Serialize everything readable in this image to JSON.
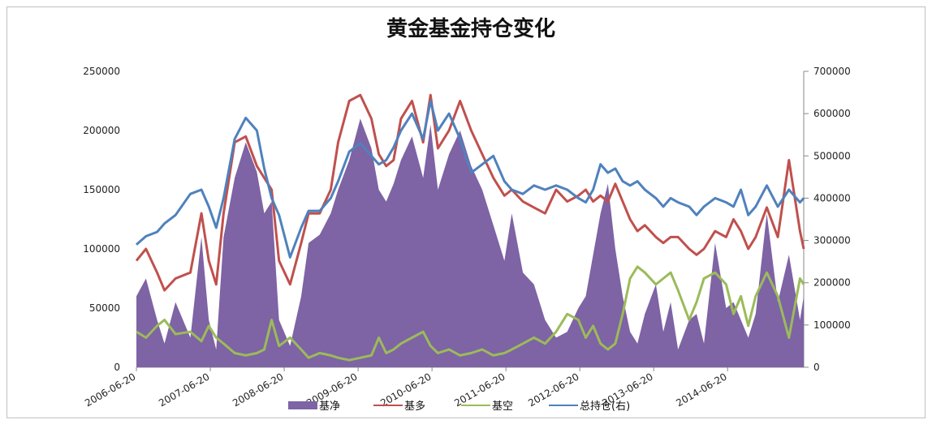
{
  "chart_data": {
    "type": "area",
    "title": "黄金基金持仓变化",
    "x_ticks": [
      "2006-06-20",
      "2007-06-20",
      "2008-06-20",
      "2009-06-20",
      "2010-06-20",
      "2011-06-20",
      "2012-06-20",
      "2013-06-20",
      "2014-06-20"
    ],
    "x_range": [
      2006.47,
      2015.5
    ],
    "y_left": {
      "ticks": [
        0,
        50000,
        100000,
        150000,
        200000,
        250000
      ],
      "tick_labels": [
        "0",
        "50000",
        "100000",
        "150000",
        "200000",
        "250000"
      ],
      "range": [
        0,
        250000
      ]
    },
    "y_right": {
      "ticks": [
        0,
        100000,
        200000,
        300000,
        400000,
        500000,
        600000,
        700000
      ],
      "tick_labels": [
        "0",
        "100000",
        "200000",
        "300000",
        "400000",
        "500000",
        "600000",
        "700000"
      ],
      "range": [
        0,
        700000
      ]
    },
    "legend_position": "bottom",
    "colors": {
      "net": "#7e63a5",
      "long": "#c0504d",
      "short": "#9bbb59",
      "total": "#4f81bd"
    },
    "series": [
      {
        "name": "基净",
        "type": "area",
        "axis": "left",
        "x": [
          2006.47,
          2006.6,
          2006.75,
          2006.85,
          2007.0,
          2007.2,
          2007.35,
          2007.45,
          2007.55,
          2007.65,
          2007.8,
          2007.95,
          2008.1,
          2008.2,
          2008.3,
          2008.4,
          2008.55,
          2008.7,
          2008.8,
          2008.95,
          2009.1,
          2009.2,
          2009.35,
          2009.5,
          2009.65,
          2009.75,
          2009.85,
          2009.95,
          2010.05,
          2010.2,
          2010.35,
          2010.45,
          2010.55,
          2010.7,
          2010.85,
          2011.0,
          2011.15,
          2011.3,
          2011.45,
          2011.55,
          2011.7,
          2011.85,
          2012.0,
          2012.15,
          2012.3,
          2012.45,
          2012.55,
          2012.65,
          2012.75,
          2012.85,
          2012.95,
          2013.05,
          2013.15,
          2013.25,
          2013.35,
          2013.5,
          2013.6,
          2013.7,
          2013.8,
          2013.95,
          2014.05,
          2014.15,
          2014.3,
          2014.45,
          2014.55,
          2014.65,
          2014.75,
          2014.85,
          2015.0,
          2015.15,
          2015.3,
          2015.45,
          2015.5
        ],
        "values": [
          60000,
          75000,
          40000,
          20000,
          55000,
          25000,
          110000,
          40000,
          15000,
          110000,
          160000,
          190000,
          165000,
          130000,
          140000,
          40000,
          18000,
          60000,
          105000,
          112000,
          130000,
          150000,
          175000,
          210000,
          185000,
          150000,
          140000,
          155000,
          175000,
          195000,
          160000,
          205000,
          150000,
          180000,
          200000,
          170000,
          150000,
          120000,
          90000,
          130000,
          80000,
          70000,
          40000,
          25000,
          30000,
          50000,
          60000,
          95000,
          130000,
          155000,
          100000,
          60000,
          30000,
          20000,
          45000,
          70000,
          30000,
          55000,
          15000,
          40000,
          45000,
          20000,
          105000,
          50000,
          55000,
          40000,
          25000,
          45000,
          130000,
          55000,
          95000,
          40000,
          60000
        ]
      },
      {
        "name": "基多",
        "type": "line",
        "axis": "left",
        "x": [
          2006.47,
          2006.6,
          2006.75,
          2006.85,
          2007.0,
          2007.2,
          2007.35,
          2007.45,
          2007.55,
          2007.65,
          2007.8,
          2007.95,
          2008.1,
          2008.2,
          2008.3,
          2008.4,
          2008.55,
          2008.7,
          2008.8,
          2008.95,
          2009.1,
          2009.2,
          2009.35,
          2009.5,
          2009.65,
          2009.75,
          2009.85,
          2009.95,
          2010.05,
          2010.2,
          2010.35,
          2010.45,
          2010.55,
          2010.7,
          2010.85,
          2011.0,
          2011.15,
          2011.3,
          2011.45,
          2011.55,
          2011.7,
          2011.85,
          2012.0,
          2012.15,
          2012.3,
          2012.45,
          2012.55,
          2012.65,
          2012.75,
          2012.85,
          2012.95,
          2013.05,
          2013.15,
          2013.25,
          2013.35,
          2013.5,
          2013.6,
          2013.7,
          2013.8,
          2013.95,
          2014.05,
          2014.15,
          2014.3,
          2014.45,
          2014.55,
          2014.65,
          2014.75,
          2014.85,
          2015.0,
          2015.15,
          2015.3,
          2015.45,
          2015.5
        ],
        "values": [
          90000,
          100000,
          80000,
          65000,
          75000,
          80000,
          130000,
          90000,
          70000,
          130000,
          190000,
          195000,
          170000,
          160000,
          150000,
          90000,
          70000,
          105000,
          130000,
          130000,
          150000,
          190000,
          225000,
          230000,
          210000,
          180000,
          170000,
          175000,
          210000,
          225000,
          190000,
          230000,
          185000,
          200000,
          225000,
          200000,
          180000,
          160000,
          145000,
          150000,
          140000,
          135000,
          130000,
          150000,
          140000,
          145000,
          150000,
          140000,
          145000,
          140000,
          155000,
          140000,
          125000,
          115000,
          120000,
          110000,
          105000,
          110000,
          110000,
          100000,
          95000,
          100000,
          115000,
          110000,
          125000,
          115000,
          100000,
          110000,
          135000,
          110000,
          175000,
          115000,
          100000
        ]
      },
      {
        "name": "基空",
        "type": "line",
        "axis": "left",
        "x": [
          2006.47,
          2006.6,
          2006.75,
          2006.85,
          2007.0,
          2007.2,
          2007.35,
          2007.45,
          2007.55,
          2007.65,
          2007.8,
          2007.95,
          2008.1,
          2008.2,
          2008.3,
          2008.4,
          2008.55,
          2008.7,
          2008.8,
          2008.95,
          2009.1,
          2009.2,
          2009.35,
          2009.5,
          2009.65,
          2009.75,
          2009.85,
          2009.95,
          2010.05,
          2010.2,
          2010.35,
          2010.45,
          2010.55,
          2010.7,
          2010.85,
          2011.0,
          2011.15,
          2011.3,
          2011.45,
          2011.55,
          2011.7,
          2011.85,
          2012.0,
          2012.15,
          2012.3,
          2012.45,
          2012.55,
          2012.65,
          2012.75,
          2012.85,
          2012.95,
          2013.05,
          2013.15,
          2013.25,
          2013.35,
          2013.5,
          2013.6,
          2013.7,
          2013.8,
          2013.95,
          2014.05,
          2014.15,
          2014.3,
          2014.45,
          2014.55,
          2014.65,
          2014.75,
          2014.85,
          2015.0,
          2015.15,
          2015.3,
          2015.45,
          2015.5
        ],
        "values": [
          30000,
          25000,
          35000,
          40000,
          28000,
          30000,
          22000,
          35000,
          25000,
          20000,
          12000,
          10000,
          12000,
          15000,
          40000,
          18000,
          25000,
          15000,
          8000,
          12000,
          10000,
          8000,
          6000,
          8000,
          10000,
          25000,
          12000,
          15000,
          20000,
          25000,
          30000,
          18000,
          12000,
          15000,
          10000,
          12000,
          15000,
          10000,
          12000,
          15000,
          20000,
          25000,
          20000,
          30000,
          45000,
          40000,
          25000,
          35000,
          20000,
          15000,
          20000,
          45000,
          75000,
          85000,
          80000,
          70000,
          75000,
          80000,
          65000,
          40000,
          55000,
          75000,
          80000,
          70000,
          45000,
          60000,
          35000,
          60000,
          80000,
          60000,
          25000,
          75000,
          70000
        ]
      },
      {
        "name": "总持仓(右)",
        "type": "line",
        "axis": "right",
        "x": [
          2006.47,
          2006.6,
          2006.75,
          2006.85,
          2007.0,
          2007.2,
          2007.35,
          2007.45,
          2007.55,
          2007.65,
          2007.8,
          2007.95,
          2008.1,
          2008.2,
          2008.3,
          2008.4,
          2008.55,
          2008.7,
          2008.8,
          2008.95,
          2009.1,
          2009.2,
          2009.35,
          2009.5,
          2009.65,
          2009.75,
          2009.85,
          2009.95,
          2010.05,
          2010.2,
          2010.35,
          2010.45,
          2010.55,
          2010.7,
          2010.85,
          2011.0,
          2011.15,
          2011.3,
          2011.45,
          2011.55,
          2011.7,
          2011.85,
          2012.0,
          2012.15,
          2012.3,
          2012.45,
          2012.55,
          2012.65,
          2012.75,
          2012.85,
          2012.95,
          2013.05,
          2013.15,
          2013.25,
          2013.35,
          2013.5,
          2013.6,
          2013.7,
          2013.8,
          2013.95,
          2014.05,
          2014.15,
          2014.3,
          2014.45,
          2014.55,
          2014.65,
          2014.75,
          2014.85,
          2015.0,
          2015.15,
          2015.3,
          2015.45,
          2015.5
        ],
        "values": [
          290000,
          310000,
          320000,
          340000,
          360000,
          410000,
          420000,
          380000,
          330000,
          400000,
          540000,
          590000,
          560000,
          470000,
          400000,
          360000,
          260000,
          330000,
          370000,
          370000,
          400000,
          440000,
          510000,
          530000,
          500000,
          480000,
          490000,
          520000,
          560000,
          600000,
          540000,
          630000,
          560000,
          600000,
          540000,
          460000,
          480000,
          500000,
          440000,
          420000,
          410000,
          430000,
          420000,
          430000,
          420000,
          400000,
          390000,
          420000,
          480000,
          460000,
          470000,
          440000,
          430000,
          440000,
          420000,
          400000,
          380000,
          400000,
          390000,
          380000,
          360000,
          380000,
          400000,
          390000,
          380000,
          420000,
          360000,
          380000,
          430000,
          380000,
          420000,
          390000,
          400000
        ]
      }
    ]
  }
}
